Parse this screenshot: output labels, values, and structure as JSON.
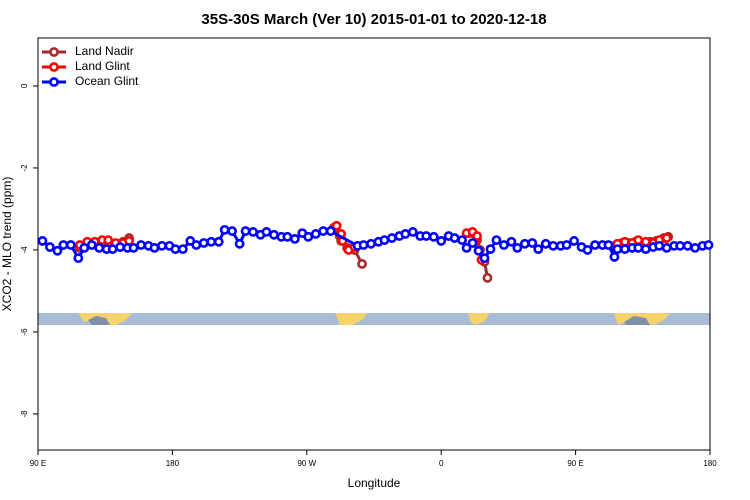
{
  "chart_data": {
    "type": "line",
    "title": "35S-30S March (Ver 10)   2015-01-01 to 2020-12-18",
    "x_label": "Longitude",
    "y_label": "XCO2 - MLO trend (ppm)",
    "xlim": [
      90,
      540
    ],
    "ylim": [
      -8.88,
      1.17
    ],
    "xticks": [
      {
        "value": 90,
        "label": "90 E"
      },
      {
        "value": 180,
        "label": "180"
      },
      {
        "value": 270,
        "label": "90 W"
      },
      {
        "value": 360,
        "label": "0"
      },
      {
        "value": 450,
        "label": "90 E"
      },
      {
        "value": 540,
        "label": "180"
      }
    ],
    "yticks": [
      0,
      -2,
      -4,
      -6,
      -8
    ],
    "legend": "top-left",
    "series": [
      {
        "name": "Land Nadir",
        "color": "#a52a2a",
        "x": [
          118,
          123,
          128,
          133,
          137,
          142,
          147,
          151,
          220,
          288,
          292,
          293,
          297,
          302,
          307,
          340,
          379,
          384,
          386,
          389,
          391,
          430,
          476,
          481,
          486,
          490,
          495,
          500,
          504,
          509,
          512
        ],
        "values": [
          -3.95,
          -3.88,
          -3.85,
          -3.83,
          -3.85,
          -3.85,
          -3.8,
          -3.71,
          null,
          -3.46,
          -3.66,
          -3.78,
          -3.95,
          -4.0,
          -4.34,
          null,
          -3.59,
          -3.76,
          -4.0,
          -4.29,
          -4.68,
          null,
          -3.9,
          -3.83,
          -3.83,
          -3.8,
          -3.83,
          -3.8,
          -3.78,
          -3.71,
          -3.68
        ]
      },
      {
        "name": "Land Glint",
        "color": "#ff0000",
        "x": [
          118,
          123,
          128,
          133,
          137,
          142,
          147,
          151,
          220,
          290,
          293,
          294,
          298,
          302,
          340,
          377,
          381,
          384,
          387,
          430,
          478,
          483,
          488,
          492,
          497,
          502,
          506,
          511
        ],
        "values": [
          -3.88,
          -3.8,
          -3.8,
          -3.76,
          -3.76,
          -3.83,
          -3.83,
          -3.78,
          null,
          -3.41,
          -3.61,
          -3.78,
          -4.0,
          -3.93,
          null,
          -3.59,
          -3.56,
          -3.66,
          -4.24,
          null,
          -3.85,
          -3.8,
          -3.83,
          -3.76,
          -3.8,
          -3.83,
          -3.76,
          -3.71
        ]
      },
      {
        "name": "Ocean Glint",
        "color": "#0000ff",
        "x": [
          93,
          98,
          103,
          107,
          112,
          117,
          121,
          126,
          131,
          136,
          140,
          145,
          150,
          154,
          159,
          164,
          168,
          173,
          178,
          182,
          187,
          192,
          196,
          201,
          206,
          211,
          215,
          220,
          225,
          229,
          234,
          239,
          243,
          248,
          253,
          257,
          262,
          267,
          271,
          276,
          281,
          286,
          304,
          308,
          313,
          318,
          322,
          327,
          332,
          336,
          341,
          346,
          350,
          355,
          360,
          365,
          369,
          374,
          377,
          381,
          385,
          389,
          393,
          397,
          402,
          407,
          411,
          416,
          421,
          425,
          430,
          435,
          440,
          444,
          449,
          454,
          458,
          463,
          468,
          472,
          476,
          478,
          483,
          488,
          492,
          497,
          502,
          506,
          511,
          516,
          520,
          525,
          530,
          535,
          539
        ],
        "values": [
          -3.78,
          -3.93,
          -4.02,
          -3.88,
          -3.88,
          -4.2,
          -3.95,
          -3.88,
          -3.95,
          -3.98,
          -3.98,
          -3.93,
          -3.95,
          -3.95,
          -3.88,
          -3.9,
          -3.95,
          -3.9,
          -3.9,
          -3.98,
          -3.98,
          -3.78,
          -3.88,
          -3.83,
          -3.8,
          -3.8,
          -3.51,
          -3.54,
          -3.85,
          -3.54,
          -3.56,
          -3.63,
          -3.56,
          -3.63,
          -3.68,
          -3.68,
          -3.73,
          -3.59,
          -3.68,
          -3.61,
          -3.54,
          -3.54,
          -3.9,
          -3.88,
          -3.85,
          -3.8,
          -3.76,
          -3.71,
          -3.66,
          -3.61,
          -3.56,
          -3.66,
          -3.66,
          -3.68,
          -3.78,
          -3.66,
          -3.71,
          -3.76,
          -3.95,
          -3.83,
          -4.02,
          -4.2,
          -3.98,
          -3.76,
          -3.88,
          -3.8,
          -3.95,
          -3.85,
          -3.83,
          -3.98,
          -3.85,
          -3.9,
          -3.9,
          -3.88,
          -3.78,
          -3.93,
          -4.0,
          -3.88,
          -3.88,
          -3.88,
          -4.17,
          -3.98,
          -3.98,
          -3.95,
          -3.95,
          -3.98,
          -3.93,
          -3.9,
          -3.95,
          -3.9,
          -3.9,
          -3.9,
          -3.95,
          -3.9,
          -3.88
        ]
      }
    ]
  }
}
